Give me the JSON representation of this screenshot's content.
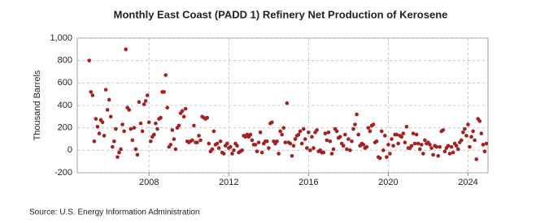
{
  "chart_data": {
    "type": "scatter",
    "title": "Monthly East Coast (PADD 1) Refinery Net Production of Kerosene",
    "y_label": "Thousand Barrels",
    "source": "Source: U.S. Energy Information Administration",
    "color": "#a52020",
    "grid": true,
    "xlim": [
      2004.4,
      2025.0
    ],
    "xticks": [
      2008,
      2012,
      2016,
      2020,
      2024
    ],
    "ylim": [
      -200,
      1000
    ],
    "yticks": [
      -200,
      0,
      200,
      400,
      600,
      800,
      {
        "value": 1000,
        "label": "1,000"
      }
    ],
    "x": [
      2005.0,
      2005.083,
      2005.167,
      2005.25,
      2005.333,
      2005.417,
      2005.5,
      2005.583,
      2005.667,
      2005.75,
      2005.833,
      2005.917,
      2006.0,
      2006.083,
      2006.167,
      2006.25,
      2006.333,
      2006.417,
      2006.5,
      2006.583,
      2006.667,
      2006.75,
      2006.833,
      2006.917,
      2007.0,
      2007.083,
      2007.167,
      2007.25,
      2007.333,
      2007.417,
      2007.5,
      2007.583,
      2007.667,
      2007.75,
      2007.833,
      2007.917,
      2008.0,
      2008.083,
      2008.167,
      2008.25,
      2008.333,
      2008.417,
      2008.5,
      2008.583,
      2008.667,
      2008.75,
      2008.833,
      2008.917,
      2009.0,
      2009.083,
      2009.167,
      2009.25,
      2009.333,
      2009.417,
      2009.5,
      2009.583,
      2009.667,
      2009.75,
      2009.833,
      2009.917,
      2010.0,
      2010.083,
      2010.167,
      2010.25,
      2010.333,
      2010.417,
      2010.5,
      2010.583,
      2010.667,
      2010.75,
      2010.833,
      2010.917,
      2011.0,
      2011.083,
      2011.167,
      2011.25,
      2011.333,
      2011.417,
      2011.5,
      2011.583,
      2011.667,
      2011.75,
      2011.833,
      2011.917,
      2012.0,
      2012.083,
      2012.167,
      2012.25,
      2012.333,
      2012.417,
      2012.5,
      2012.583,
      2012.667,
      2012.75,
      2012.833,
      2012.917,
      2013.0,
      2013.083,
      2013.167,
      2013.25,
      2013.333,
      2013.417,
      2013.5,
      2013.583,
      2013.667,
      2013.75,
      2013.833,
      2013.917,
      2014.0,
      2014.083,
      2014.167,
      2014.25,
      2014.333,
      2014.417,
      2014.5,
      2014.583,
      2014.667,
      2014.75,
      2014.833,
      2014.917,
      2015.0,
      2015.083,
      2015.167,
      2015.25,
      2015.333,
      2015.417,
      2015.5,
      2015.583,
      2015.667,
      2015.75,
      2015.833,
      2015.917,
      2016.0,
      2016.083,
      2016.167,
      2016.25,
      2016.333,
      2016.417,
      2016.5,
      2016.583,
      2016.667,
      2016.75,
      2016.833,
      2016.917,
      2017.0,
      2017.083,
      2017.167,
      2017.25,
      2017.333,
      2017.417,
      2017.5,
      2017.583,
      2017.667,
      2017.75,
      2017.833,
      2017.917,
      2018.0,
      2018.083,
      2018.167,
      2018.25,
      2018.333,
      2018.417,
      2018.5,
      2018.583,
      2018.667,
      2018.75,
      2018.833,
      2018.917,
      2019.0,
      2019.083,
      2019.167,
      2019.25,
      2019.333,
      2019.417,
      2019.5,
      2019.583,
      2019.667,
      2019.75,
      2019.833,
      2019.917,
      2020.0,
      2020.083,
      2020.167,
      2020.25,
      2020.333,
      2020.417,
      2020.5,
      2020.583,
      2020.667,
      2020.75,
      2020.833,
      2020.917,
      2021.0,
      2021.083,
      2021.167,
      2021.25,
      2021.333,
      2021.417,
      2021.5,
      2021.583,
      2021.667,
      2021.75,
      2021.833,
      2021.917,
      2022.0,
      2022.083,
      2022.167,
      2022.25,
      2022.333,
      2022.417,
      2022.5,
      2022.583,
      2022.667,
      2022.75,
      2022.833,
      2022.917,
      2023.0,
      2023.083,
      2023.167,
      2023.25,
      2023.333,
      2023.417,
      2023.5,
      2023.583,
      2023.667,
      2023.75,
      2023.833,
      2023.917,
      2024.0,
      2024.083,
      2024.167,
      2024.25,
      2024.333,
      2024.417,
      2024.5,
      2024.583,
      2024.667,
      2024.75,
      2024.833,
      2024.917
    ],
    "values": [
      800,
      520,
      490,
      80,
      280,
      210,
      150,
      270,
      250,
      130,
      540,
      360,
      450,
      300,
      30,
      80,
      190,
      -60,
      -20,
      10,
      230,
      170,
      900,
      380,
      360,
      190,
      90,
      200,
      10,
      -40,
      430,
      240,
      170,
      410,
      440,
      490,
      250,
      80,
      120,
      140,
      240,
      190,
      280,
      290,
      520,
      520,
      670,
      380,
      30,
      50,
      180,
      100,
      10,
      200,
      220,
      330,
      350,
      300,
      370,
      80,
      70,
      80,
      90,
      220,
      70,
      70,
      130,
      90,
      300,
      290,
      280,
      290,
      60,
      -10,
      10,
      170,
      50,
      60,
      20,
      80,
      -20,
      -30,
      40,
      60,
      20,
      30,
      -30,
      0,
      60,
      40,
      -20,
      -10,
      0,
      130,
      120,
      140,
      120,
      140,
      90,
      50,
      50,
      -10,
      70,
      160,
      -20,
      60,
      80,
      80,
      20,
      240,
      250,
      80,
      60,
      80,
      -30,
      170,
      140,
      200,
      70,
      420,
      70,
      60,
      -50,
      40,
      100,
      130,
      140,
      170,
      60,
      190,
      100,
      20,
      160,
      0,
      120,
      20,
      160,
      180,
      -10,
      0,
      -20,
      -20,
      150,
      90,
      160,
      80,
      -30,
      10,
      190,
      170,
      110,
      120,
      60,
      40,
      140,
      10,
      100,
      0,
      80,
      190,
      230,
      320,
      140,
      40,
      60,
      50,
      20,
      30,
      200,
      170,
      220,
      230,
      70,
      80,
      -60,
      -70,
      170,
      0,
      130,
      -60,
      50,
      -30,
      100,
      40,
      140,
      140,
      60,
      130,
      120,
      150,
      70,
      210,
      20,
      20,
      40,
      150,
      60,
      140,
      60,
      10,
      50,
      -30,
      90,
      60,
      70,
      50,
      20,
      -40,
      40,
      30,
      -50,
      30,
      170,
      180,
      -10,
      20,
      40,
      -30,
      30,
      -20,
      60,
      40,
      10,
      70,
      90,
      160,
      190,
      130,
      230,
      30,
      120,
      170,
      90,
      -80,
      280,
      260,
      150,
      50,
      -10,
      60
    ]
  }
}
